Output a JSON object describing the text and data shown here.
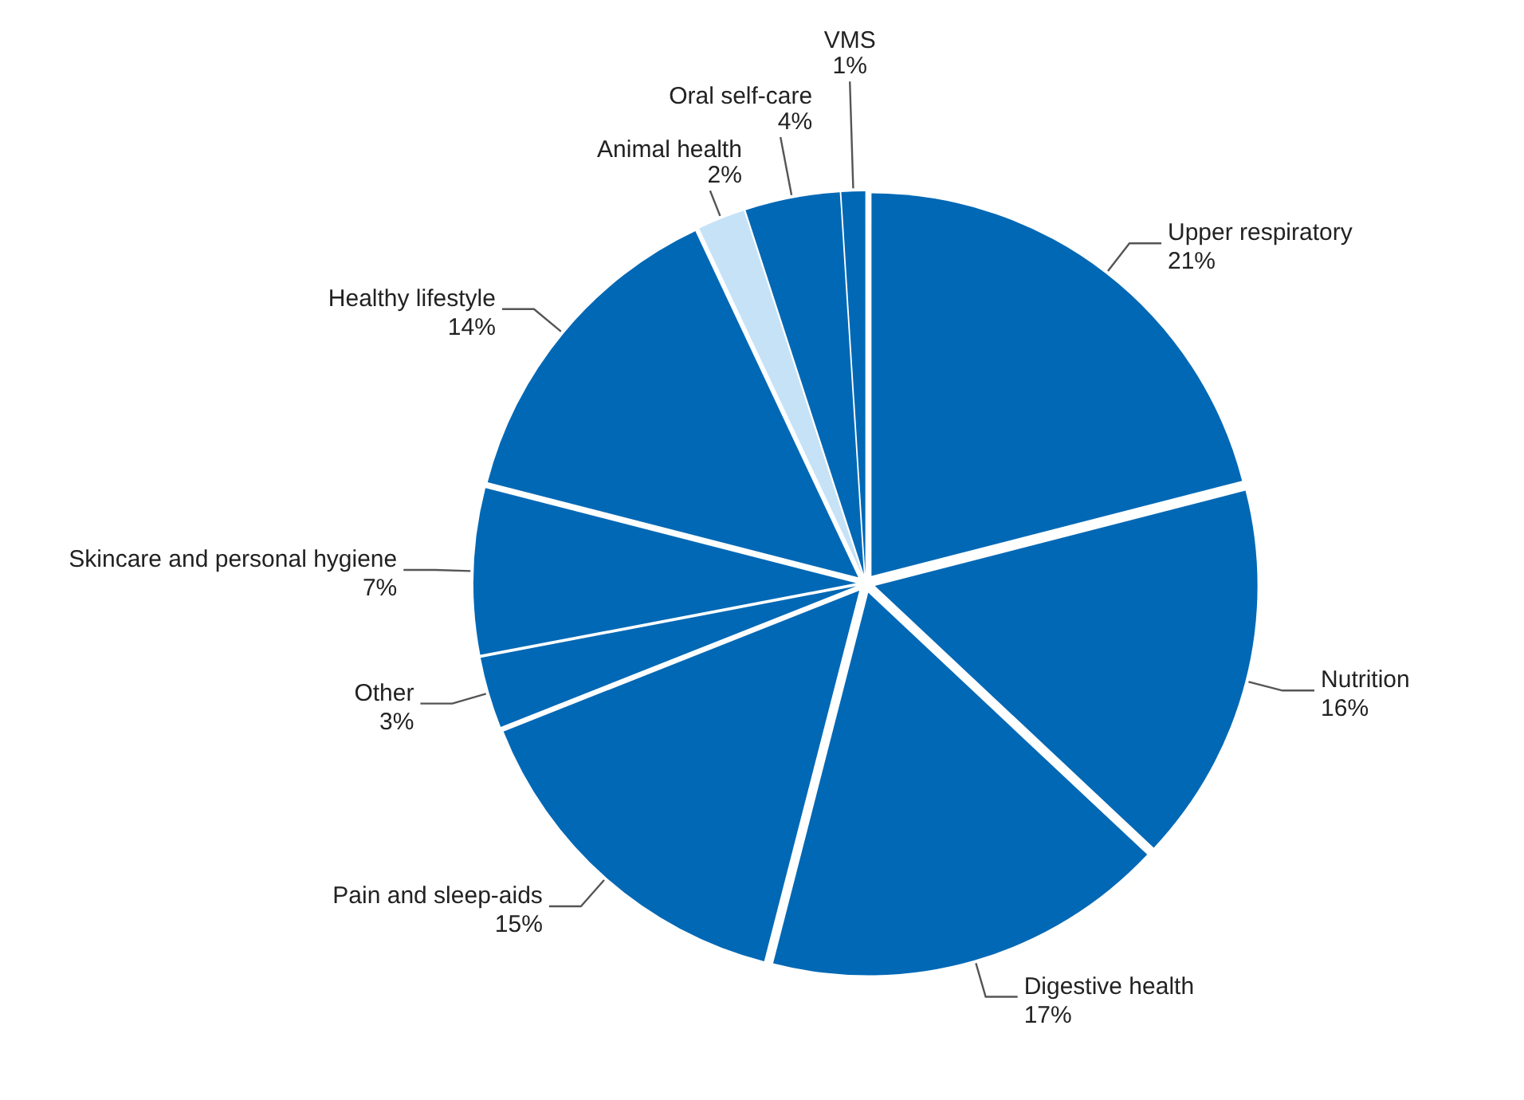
{
  "chart_data": {
    "type": "pie",
    "categories": [
      "Upper respiratory",
      "Nutrition",
      "Digestive health",
      "Pain and sleep-aids",
      "Other",
      "Skincare and personal hygiene",
      "Healthy lifestyle",
      "Animal health",
      "Oral self-care",
      "VMS"
    ],
    "values": [
      21,
      16,
      17,
      15,
      3,
      7,
      14,
      2,
      4,
      1
    ],
    "value_labels": [
      "21%",
      "16%",
      "17%",
      "15%",
      "3%",
      "7%",
      "14%",
      "2%",
      "4%",
      "1%"
    ],
    "colors": [
      "#0068b5",
      "#0068b5",
      "#0068b5",
      "#0068b5",
      "#0068b5",
      "#0068b5",
      "#0068b5",
      "#c6e2f7",
      "#0068b5",
      "#0068b5"
    ]
  }
}
